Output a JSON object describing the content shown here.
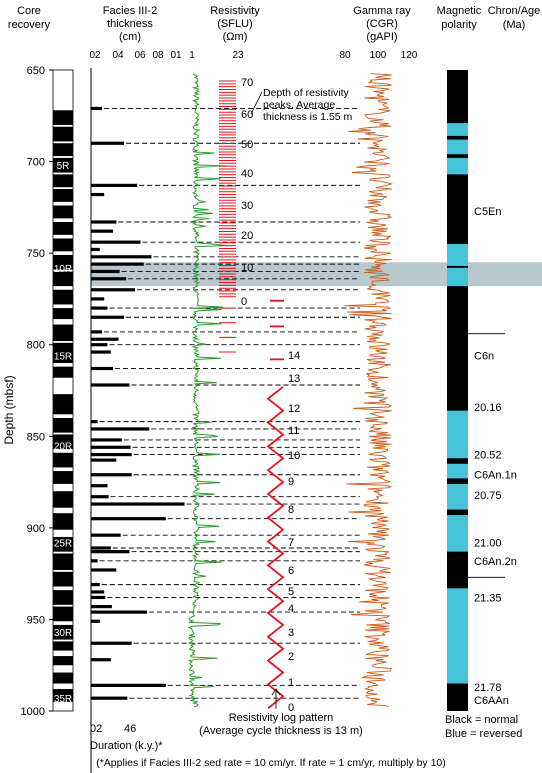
{
  "chart_data": {
    "type": "line",
    "depth_range": [
      650,
      1000
    ],
    "depth_ticks": [
      650,
      700,
      750,
      800,
      850,
      900,
      950,
      1000
    ],
    "ylabel": "Depth (mbsf)",
    "colors": {
      "recovery": "#000000",
      "resistivity": "#2e9b2e",
      "gamma": "#cc5a18",
      "peaks": "#e8121c",
      "normal": "#000000",
      "reversed": "#46c2d9",
      "band": "#b9c8cf"
    },
    "columns": {
      "core": [
        "Core",
        "recovery"
      ],
      "facies": [
        "Facies III-2",
        "thickness",
        "(cm)"
      ],
      "resistivity": [
        "Resistivity",
        "(SFLU)",
        "(Ωm)"
      ],
      "gamma": [
        "Gamma ray",
        "(CGR)",
        "(gAPI)"
      ],
      "polarity": [
        "Magnetic",
        "polarity"
      ],
      "chron": [
        "Chron/Age",
        "(Ma)"
      ]
    },
    "facies_ticks": [
      "02",
      "04",
      "06",
      "08",
      "01"
    ],
    "resistivity_ticks": [
      "1",
      "23"
    ],
    "gamma_ticks": [
      "80",
      "100",
      "120"
    ],
    "duration_ticks": [
      "02",
      "46"
    ],
    "duration_label": "Duration (k.y.)*",
    "core_sections": [
      {
        "top": 672,
        "bottom": 680
      },
      {
        "top": 681,
        "bottom": 689
      },
      {
        "top": 690,
        "bottom": 697
      },
      {
        "top": 698,
        "bottom": 706
      },
      {
        "top": 707,
        "bottom": 714
      },
      {
        "top": 715,
        "bottom": 722
      },
      {
        "top": 724,
        "bottom": 731
      },
      {
        "top": 733,
        "bottom": 740
      },
      {
        "top": 742,
        "bottom": 749
      },
      {
        "top": 751,
        "bottom": 759
      },
      {
        "top": 760,
        "bottom": 768
      },
      {
        "top": 770,
        "bottom": 778
      },
      {
        "top": 780,
        "bottom": 786
      },
      {
        "top": 789,
        "bottom": 798
      },
      {
        "top": 799,
        "bottom": 810
      },
      {
        "top": 812,
        "bottom": 818
      },
      {
        "top": 827,
        "bottom": 838
      },
      {
        "top": 840,
        "bottom": 848
      },
      {
        "top": 849,
        "bottom": 857
      },
      {
        "top": 859,
        "bottom": 867
      },
      {
        "top": 869,
        "bottom": 876
      },
      {
        "top": 880,
        "bottom": 889
      },
      {
        "top": 892,
        "bottom": 901
      },
      {
        "top": 905,
        "bottom": 913
      },
      {
        "top": 914,
        "bottom": 923
      },
      {
        "top": 924,
        "bottom": 932
      },
      {
        "top": 934,
        "bottom": 942
      },
      {
        "top": 943,
        "bottom": 951
      },
      {
        "top": 953,
        "bottom": 961
      },
      {
        "top": 962,
        "bottom": 967
      },
      {
        "top": 970,
        "bottom": 975
      },
      {
        "top": 979,
        "bottom": 985
      },
      {
        "top": 988,
        "bottom": 995
      }
    ],
    "core_labels": [
      {
        "text": "5R",
        "depth": 702
      },
      {
        "text": "10R",
        "depth": 758
      },
      {
        "text": "15R",
        "depth": 806
      },
      {
        "text": "20R",
        "depth": 855
      },
      {
        "text": "25R",
        "depth": 908
      },
      {
        "text": "30R",
        "depth": 957
      },
      {
        "text": "35R",
        "depth": 993
      }
    ],
    "facies_beds": [
      {
        "depth": 671,
        "value": 1
      },
      {
        "depth": 690,
        "value": 3
      },
      {
        "depth": 713,
        "value": 4.2
      },
      {
        "depth": 718,
        "value": 1.2
      },
      {
        "depth": 733,
        "value": 2.3
      },
      {
        "depth": 738,
        "value": 2
      },
      {
        "depth": 744,
        "value": 4.5
      },
      {
        "depth": 748,
        "value": 0.8
      },
      {
        "depth": 752,
        "value": 5.5
      },
      {
        "depth": 756,
        "value": 4.8
      },
      {
        "depth": 760,
        "value": 2.6
      },
      {
        "depth": 764,
        "value": 3.2
      },
      {
        "depth": 770,
        "value": 4
      },
      {
        "depth": 775,
        "value": 1.2
      },
      {
        "depth": 780,
        "value": 1.5
      },
      {
        "depth": 785,
        "value": 3
      },
      {
        "depth": 793,
        "value": 1
      },
      {
        "depth": 797,
        "value": 2.5
      },
      {
        "depth": 800,
        "value": 1.5
      },
      {
        "depth": 804,
        "value": 1.8
      },
      {
        "depth": 813,
        "value": 2
      },
      {
        "depth": 822,
        "value": 3.5
      },
      {
        "depth": 842,
        "value": 0.6
      },
      {
        "depth": 846,
        "value": 5.3
      },
      {
        "depth": 852,
        "value": 2.8
      },
      {
        "depth": 856,
        "value": 3.6
      },
      {
        "depth": 860,
        "value": 3.7
      },
      {
        "depth": 863,
        "value": 2.3
      },
      {
        "depth": 871,
        "value": 3.7
      },
      {
        "depth": 877,
        "value": 1.5
      },
      {
        "depth": 883,
        "value": 1.6
      },
      {
        "depth": 887,
        "value": 8.5
      },
      {
        "depth": 895,
        "value": 6.8
      },
      {
        "depth": 904,
        "value": 2.7
      },
      {
        "depth": 911,
        "value": 1.8
      },
      {
        "depth": 913,
        "value": 3.5
      },
      {
        "depth": 918,
        "value": 0.6
      },
      {
        "depth": 923,
        "value": 2.3
      },
      {
        "depth": 931,
        "value": 0.8
      },
      {
        "depth": 935,
        "value": 1.2
      },
      {
        "depth": 938,
        "value": 1.3
      },
      {
        "depth": 943,
        "value": 1.9
      },
      {
        "depth": 946,
        "value": 5.1
      },
      {
        "depth": 951,
        "value": 0.8
      },
      {
        "depth": 963,
        "value": 3.7
      },
      {
        "depth": 972,
        "value": 1.8
      },
      {
        "depth": 986,
        "value": 6.8
      },
      {
        "depth": 993,
        "value": 3.3
      }
    ],
    "resistivity_peaks_upper": {
      "labels": [
        "70",
        "60",
        "50",
        "40",
        "30",
        "20",
        "10",
        "0"
      ]
    },
    "resistivity_cycles": {
      "labels": [
        "14",
        "13",
        "12",
        "11",
        "10",
        "9",
        "8",
        "7",
        "6",
        "5",
        "4",
        "3",
        "2",
        "1",
        "0"
      ]
    },
    "polarity_blocks": [
      {
        "top": 672,
        "bottom": 678,
        "polarity": "normal"
      },
      {
        "top": 679,
        "bottom": 686,
        "polarity": "reversed"
      },
      {
        "top": 688,
        "bottom": 696,
        "polarity": "reversed"
      },
      {
        "top": 698,
        "bottom": 707,
        "polarity": "reversed"
      },
      {
        "top": 732,
        "bottom": 744,
        "polarity": "normal"
      },
      {
        "top": 745,
        "bottom": 757,
        "polarity": "reversed"
      },
      {
        "top": 758,
        "bottom": 768,
        "polarity": "reversed"
      },
      {
        "top": 792,
        "bottom": 804,
        "polarity": "normal"
      },
      {
        "top": 836,
        "bottom": 862,
        "polarity": "reversed"
      },
      {
        "top": 865,
        "bottom": 873,
        "polarity": "reversed"
      },
      {
        "top": 876,
        "bottom": 890,
        "polarity": "reversed"
      },
      {
        "top": 893,
        "bottom": 913,
        "polarity": "reversed"
      },
      {
        "top": 914,
        "bottom": 921,
        "polarity": "normal"
      },
      {
        "top": 923,
        "bottom": 930,
        "polarity": "normal"
      },
      {
        "top": 933,
        "bottom": 985,
        "polarity": "reversed"
      },
      {
        "top": 986,
        "bottom": 991,
        "polarity": "normal"
      }
    ],
    "chron_labels": [
      {
        "text": "C5En",
        "depth": 727
      },
      {
        "text": "C6n",
        "depth": 806
      },
      {
        "text": "20.16",
        "depth": 834
      },
      {
        "text": "20.52",
        "depth": 860
      },
      {
        "text": "C6An.1n",
        "depth": 871
      },
      {
        "text": "20.75",
        "depth": 882
      },
      {
        "text": "21.00",
        "depth": 908
      },
      {
        "text": "C6An.2n",
        "depth": 918
      },
      {
        "text": "21.35",
        "depth": 938
      },
      {
        "text": "21.78",
        "depth": 987
      },
      {
        "text": "C6AAn",
        "depth": 994
      }
    ],
    "chron_lines": [
      794,
      927
    ],
    "band": {
      "top": 755,
      "bottom": 768
    },
    "annotations": {
      "peaks_note": [
        "Depth of resistivity",
        "peaks. Average",
        "thickness is 1.55 m"
      ],
      "cycle_note": [
        "Resistivity log pattern",
        "(Average cycle thickness is 13 m)"
      ]
    },
    "legend": [
      "Black = normal",
      "Blue = reversed"
    ],
    "footnote": "(*Applies if Facies III-2 sed rate = 10 cm/yr.  If rate = 1 cm/yr, multiply by 10)"
  }
}
